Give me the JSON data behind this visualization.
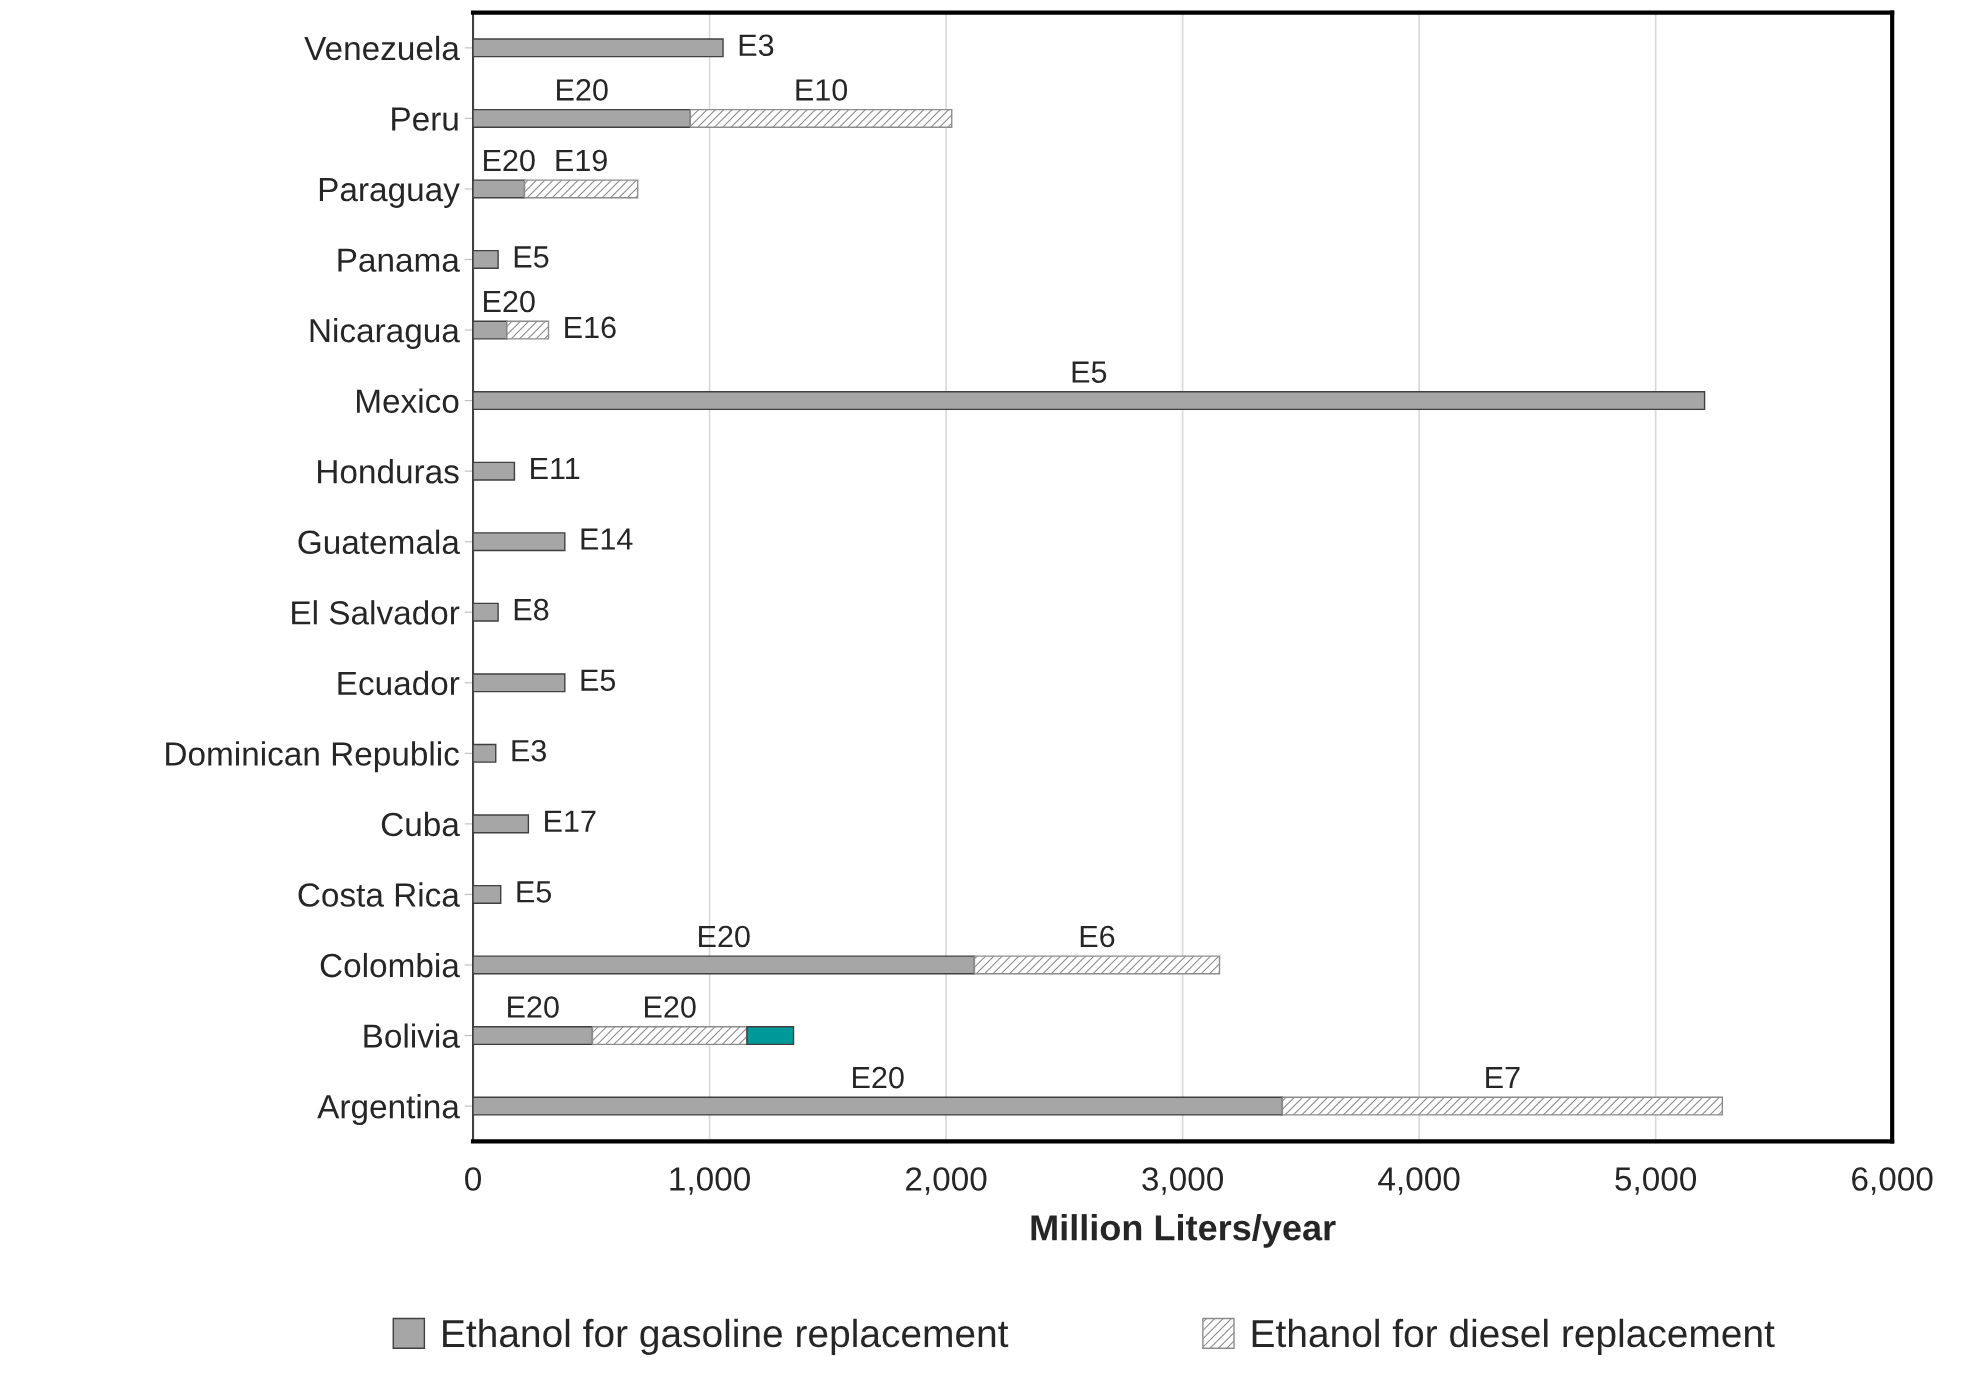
{
  "chart_data": {
    "type": "bar",
    "orientation": "horizontal",
    "stacked": true,
    "xlabel": "Million Liters/year",
    "categories": [
      "Venezuela",
      "Peru",
      "Paraguay",
      "Panama",
      "Nicaragua",
      "Mexico",
      "Honduras",
      "Guatemala",
      "El Salvador",
      "Ecuador",
      "Dominican Republic",
      "Cuba",
      "Costa Rica",
      "Colombia",
      "Bolivia",
      "Argentina"
    ],
    "series": [
      {
        "name": "Ethanol for gasoline replacement",
        "color": "#a6a6a6",
        "values": [
          1057,
          919,
          218,
          106,
          143,
          5207,
          175,
          388,
          106,
          388,
          96,
          234,
          117,
          2120,
          505,
          3422
        ],
        "value_labels": [
          "E3",
          "E20",
          "E20",
          "E5",
          "E20",
          "E5",
          "E11",
          "E14",
          "E8",
          "E5",
          "E3",
          "E17",
          "E5",
          "E20",
          "E20",
          "E20"
        ]
      },
      {
        "name": "Ethanol for diesel replacement",
        "color": "#8c8c8c",
        "values": [
          null,
          1105,
          478,
          null,
          176,
          null,
          null,
          null,
          null,
          null,
          null,
          null,
          null,
          1036,
          653,
          1860
        ],
        "value_labels": [
          null,
          "E10",
          "E19",
          null,
          "E16",
          null,
          null,
          null,
          null,
          null,
          null,
          null,
          null,
          "E6",
          "E20",
          "E7"
        ]
      },
      {
        "color": "#009999",
        "values": [
          null,
          null,
          null,
          null,
          null,
          null,
          null,
          null,
          null,
          null,
          null,
          null,
          null,
          null,
          197,
          null
        ]
      }
    ],
    "xlim": [
      0,
      6000
    ],
    "xticks": [
      {
        "value": 0,
        "label": "0"
      },
      {
        "value": 1000,
        "label": "1,000"
      },
      {
        "value": 2000,
        "label": "2,000"
      },
      {
        "value": 3000,
        "label": "3,000"
      },
      {
        "value": 4000,
        "label": "4,000"
      },
      {
        "value": 5000,
        "label": "5,000"
      },
      {
        "value": 6000,
        "label": "6,000"
      }
    ],
    "grid": "x",
    "legend": "bottom"
  }
}
